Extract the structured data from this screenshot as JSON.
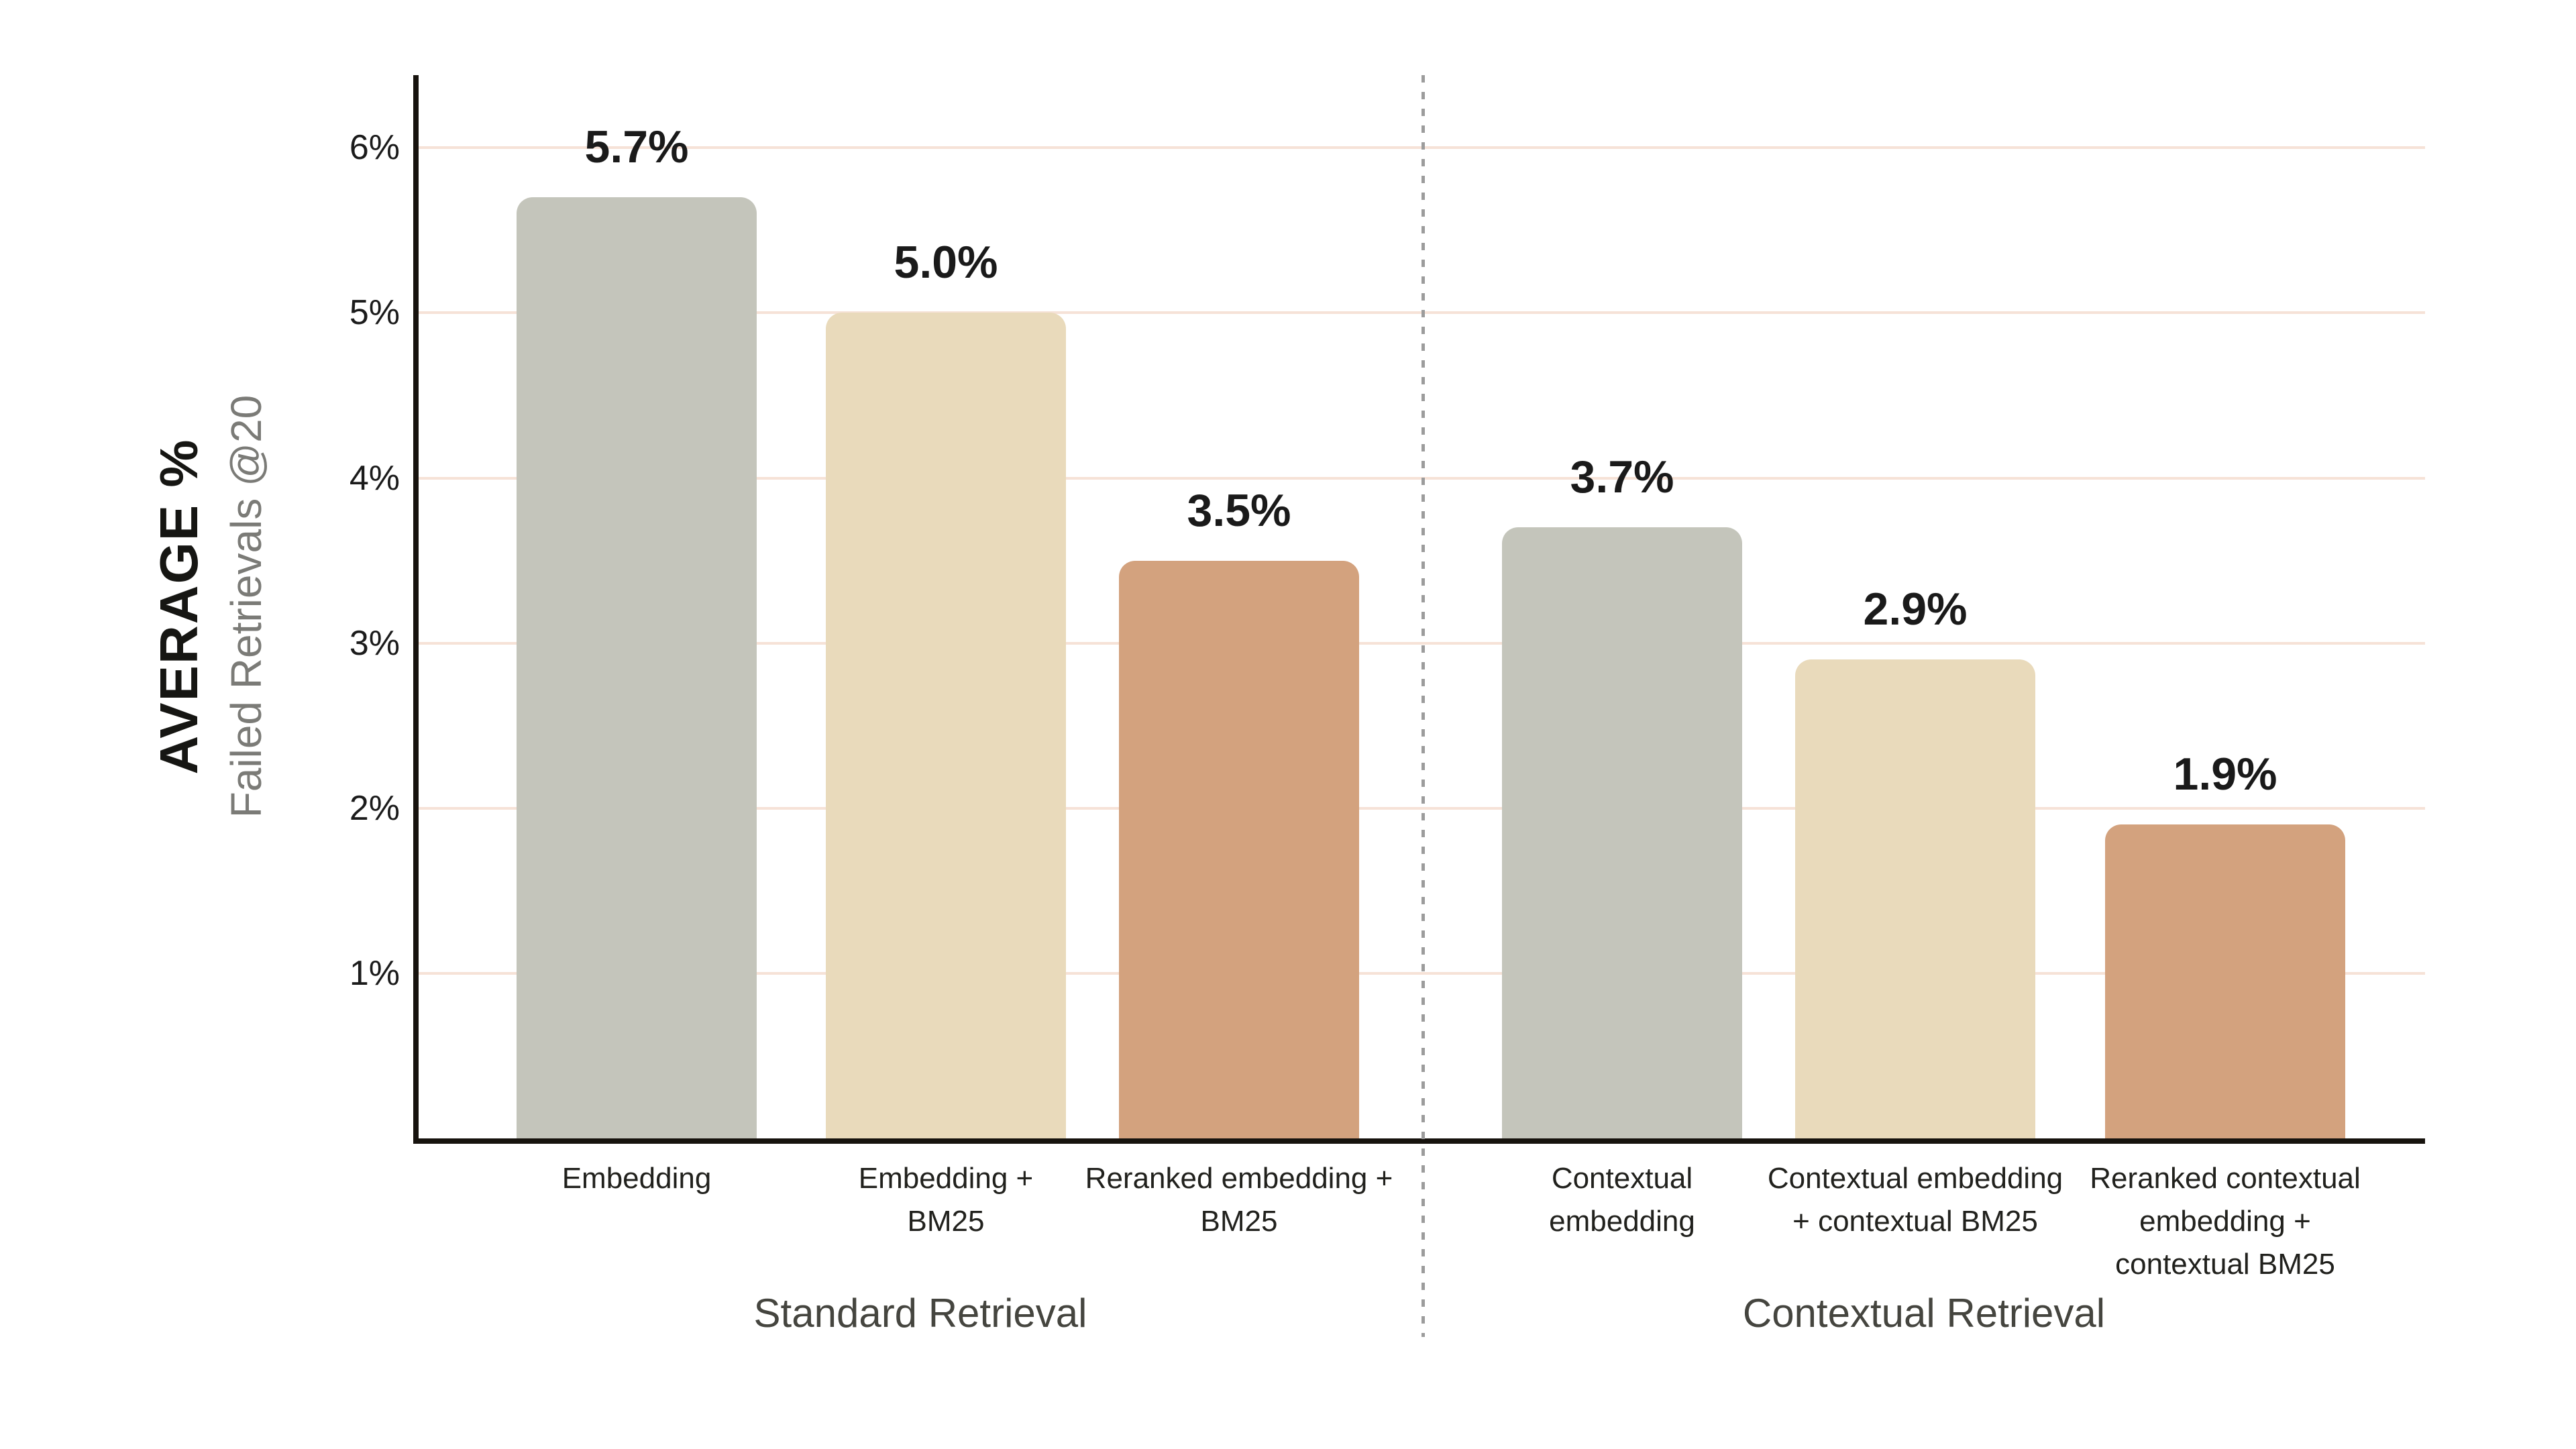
{
  "chart_data": {
    "type": "bar",
    "title": "",
    "ylabel_main": "AVERAGE %",
    "ylabel_sub": "Failed Retrievals @20",
    "ylim": [
      0,
      6.44
    ],
    "grid": true,
    "gridline_color": "#f6e2d7",
    "axis_color": "#17130e",
    "divider_color": "#9c9c9c",
    "yticks": [
      {
        "value": 1,
        "label": "1%"
      },
      {
        "value": 2,
        "label": "2%"
      },
      {
        "value": 3,
        "label": "3%"
      },
      {
        "value": 4,
        "label": "4%"
      },
      {
        "value": 5,
        "label": "5%"
      },
      {
        "value": 6,
        "label": "6%"
      }
    ],
    "groups": [
      {
        "label": "Standard Retrieval",
        "bars": [
          {
            "name": "embedding",
            "category_lines": [
              "Embedding"
            ],
            "value": 5.7,
            "value_label": "5.7%",
            "color": "#c4c5bb"
          },
          {
            "name": "embedding-bm25",
            "category_lines": [
              "Embedding +",
              "BM25"
            ],
            "value": 5.0,
            "value_label": "5.0%",
            "color": "#e9dabb"
          },
          {
            "name": "reranked-embedding-bm25",
            "category_lines": [
              "Reranked embedding +",
              "BM25"
            ],
            "value": 3.5,
            "value_label": "3.5%",
            "color": "#d3a27e"
          }
        ]
      },
      {
        "label": "Contextual Retrieval",
        "bars": [
          {
            "name": "contextual-embedding",
            "category_lines": [
              "Contextual",
              "embedding"
            ],
            "value": 3.7,
            "value_label": "3.7%",
            "color": "#c4c5bb"
          },
          {
            "name": "contextual-embedding-contextual-bm25",
            "category_lines": [
              "Contextual embedding",
              "+ contextual BM25"
            ],
            "value": 2.9,
            "value_label": "2.9%",
            "color": "#e9dabb"
          },
          {
            "name": "reranked-contextual-embedding-contextual-bm25",
            "category_lines": [
              "Reranked contextual",
              "embedding +",
              "contextual BM25"
            ],
            "value": 1.9,
            "value_label": "1.9%",
            "color": "#d3a27e"
          }
        ]
      }
    ]
  }
}
